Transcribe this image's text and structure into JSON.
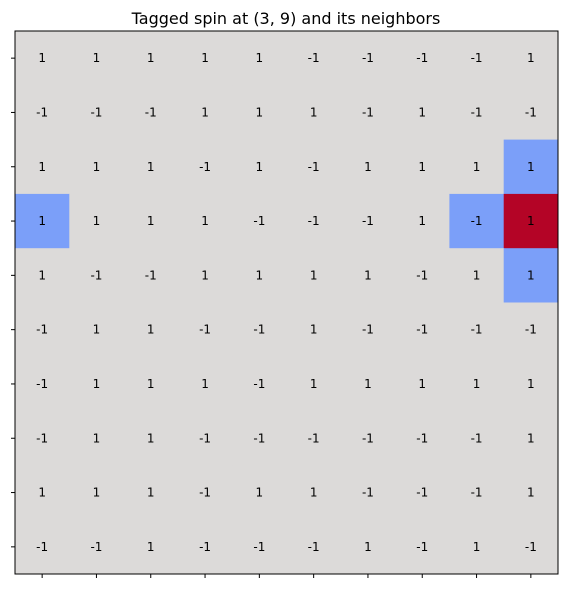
{
  "chart_data": {
    "type": "heatmap",
    "title": "Tagged spin at (3, 9) and its neighbors",
    "xlabel": "",
    "ylabel": "",
    "tick_labels_shown": false,
    "rows": 10,
    "cols": 10,
    "values": [
      [
        1,
        1,
        1,
        1,
        1,
        -1,
        -1,
        -1,
        -1,
        1
      ],
      [
        -1,
        -1,
        -1,
        1,
        1,
        1,
        -1,
        1,
        -1,
        -1
      ],
      [
        1,
        1,
        1,
        -1,
        1,
        -1,
        1,
        1,
        1,
        1
      ],
      [
        1,
        1,
        1,
        1,
        -1,
        -1,
        -1,
        1,
        -1,
        1
      ],
      [
        1,
        -1,
        -1,
        1,
        1,
        1,
        1,
        -1,
        1,
        1
      ],
      [
        -1,
        1,
        1,
        -1,
        -1,
        1,
        -1,
        -1,
        -1,
        -1
      ],
      [
        -1,
        1,
        1,
        1,
        -1,
        1,
        1,
        1,
        1,
        1
      ],
      [
        -1,
        1,
        1,
        -1,
        -1,
        -1,
        -1,
        -1,
        -1,
        1
      ],
      [
        1,
        1,
        1,
        -1,
        1,
        1,
        -1,
        -1,
        -1,
        1
      ],
      [
        -1,
        -1,
        1,
        -1,
        -1,
        -1,
        1,
        -1,
        1,
        -1
      ]
    ],
    "tagged": [
      3,
      9
    ],
    "neighbors": [
      [
        2,
        9
      ],
      [
        4,
        9
      ],
      [
        3,
        8
      ],
      [
        3,
        0
      ]
    ],
    "colors": {
      "background": "#dcdad9",
      "tagged": "#b40426",
      "neighbor": "#7b9ff9",
      "text": "#000000"
    }
  }
}
